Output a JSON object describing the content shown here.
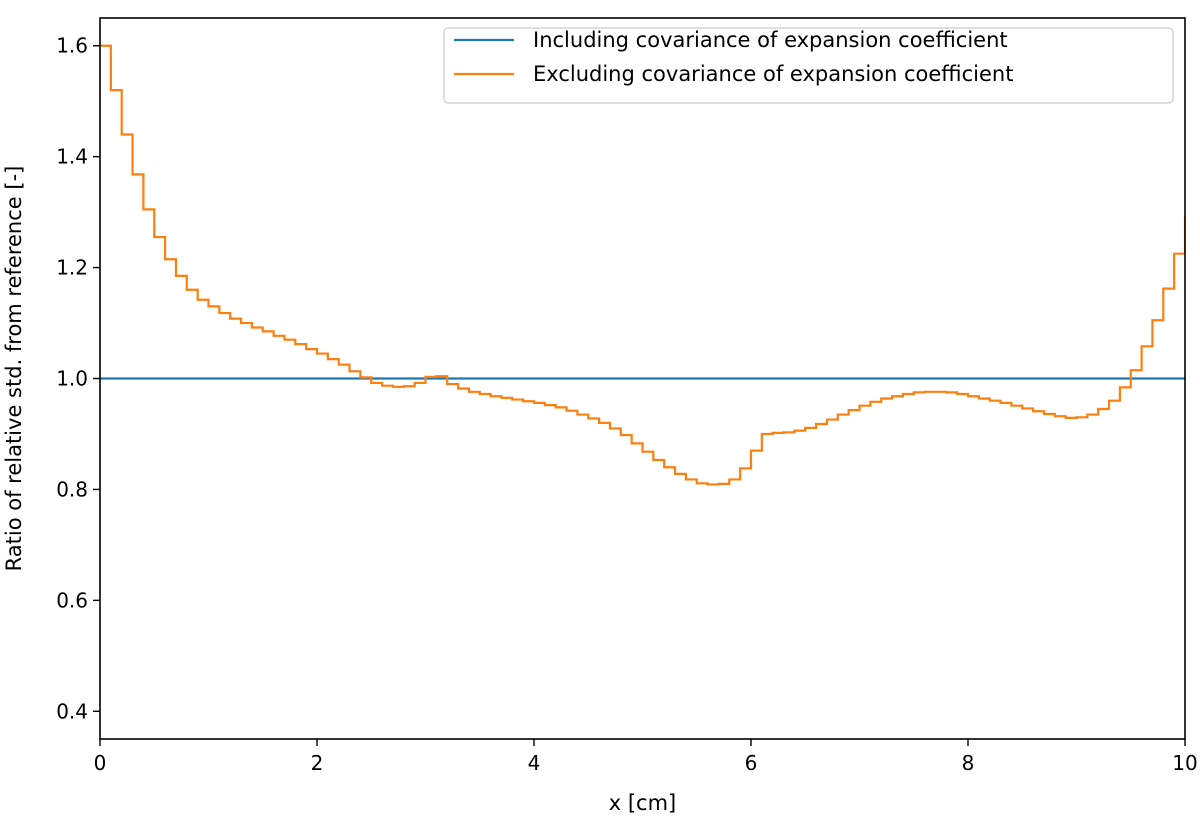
{
  "chart_data": {
    "type": "line",
    "xlabel": "x [cm]",
    "ylabel": "Ratio of relative std. from reference [-]",
    "xlim": [
      0,
      10
    ],
    "ylim": [
      0.35,
      1.65
    ],
    "xticks": [
      0,
      2,
      4,
      6,
      8,
      10
    ],
    "xtick_labels": [
      "0",
      "2",
      "4",
      "6",
      "8",
      "10"
    ],
    "yticks": [
      0.4,
      0.6,
      0.8,
      1.0,
      1.2,
      1.4,
      1.6
    ],
    "ytick_labels": [
      "0.4",
      "0.6",
      "0.8",
      "1.0",
      "1.2",
      "1.4",
      "1.6"
    ],
    "grid": false,
    "legend_position": "top-right",
    "series": [
      {
        "name": "Including covariance of expansion coefficient",
        "color": "#1f77b4",
        "style": "line",
        "x": [
          0,
          10
        ],
        "y": [
          1.0,
          1.0
        ]
      },
      {
        "name": "Excluding covariance of expansion coefficient",
        "color": "#ff7f0e",
        "style": "step",
        "bin_width": 0.1,
        "x_start": 0,
        "y": [
          1.6,
          1.52,
          1.44,
          1.368,
          1.305,
          1.255,
          1.215,
          1.185,
          1.16,
          1.142,
          1.13,
          1.118,
          1.108,
          1.1,
          1.092,
          1.085,
          1.077,
          1.07,
          1.062,
          1.053,
          1.045,
          1.035,
          1.025,
          1.013,
          1.002,
          0.992,
          0.987,
          0.985,
          0.986,
          0.992,
          1.003,
          1.004,
          0.99,
          0.982,
          0.976,
          0.972,
          0.968,
          0.965,
          0.962,
          0.959,
          0.956,
          0.952,
          0.948,
          0.942,
          0.935,
          0.928,
          0.92,
          0.91,
          0.898,
          0.883,
          0.868,
          0.853,
          0.84,
          0.828,
          0.818,
          0.811,
          0.809,
          0.81,
          0.818,
          0.838,
          0.87,
          0.9,
          0.902,
          0.903,
          0.906,
          0.911,
          0.918,
          0.926,
          0.935,
          0.943,
          0.951,
          0.958,
          0.964,
          0.968,
          0.972,
          0.975,
          0.976,
          0.976,
          0.975,
          0.972,
          0.968,
          0.964,
          0.96,
          0.956,
          0.951,
          0.946,
          0.941,
          0.936,
          0.932,
          0.929,
          0.93,
          0.935,
          0.945,
          0.96,
          0.984,
          1.015,
          1.058,
          1.105,
          1.162,
          1.225,
          1.29
        ]
      }
    ]
  }
}
